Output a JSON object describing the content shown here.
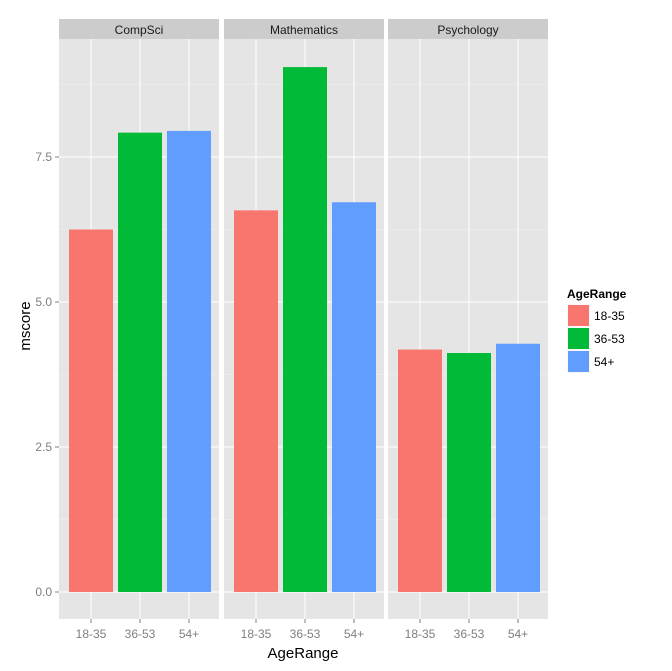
{
  "chart_data": {
    "type": "bar",
    "facet_variable": "Subject",
    "facets": [
      "CompSci",
      "Mathematics",
      "Psychology"
    ],
    "categories": [
      "18-35",
      "36-53",
      "54+"
    ],
    "values": {
      "CompSci": [
        6.25,
        7.92,
        7.95
      ],
      "Mathematics": [
        6.58,
        9.05,
        6.72
      ],
      "Psychology": [
        4.18,
        4.12,
        4.28
      ]
    },
    "colors": [
      "#F8766D",
      "#00BA38",
      "#619CFF"
    ],
    "xlabel": "AgeRange",
    "ylabel": "mscore",
    "ylim": [
      -0.45,
      9.5
    ],
    "yticks": [
      "0.0",
      "2.5",
      "5.0",
      "7.5"
    ],
    "ytick_values": [
      0,
      2.5,
      5,
      7.5
    ],
    "legend": {
      "title": "AgeRange",
      "position": "right",
      "entries": [
        "18-35",
        "36-53",
        "54+"
      ]
    },
    "grid": true
  }
}
